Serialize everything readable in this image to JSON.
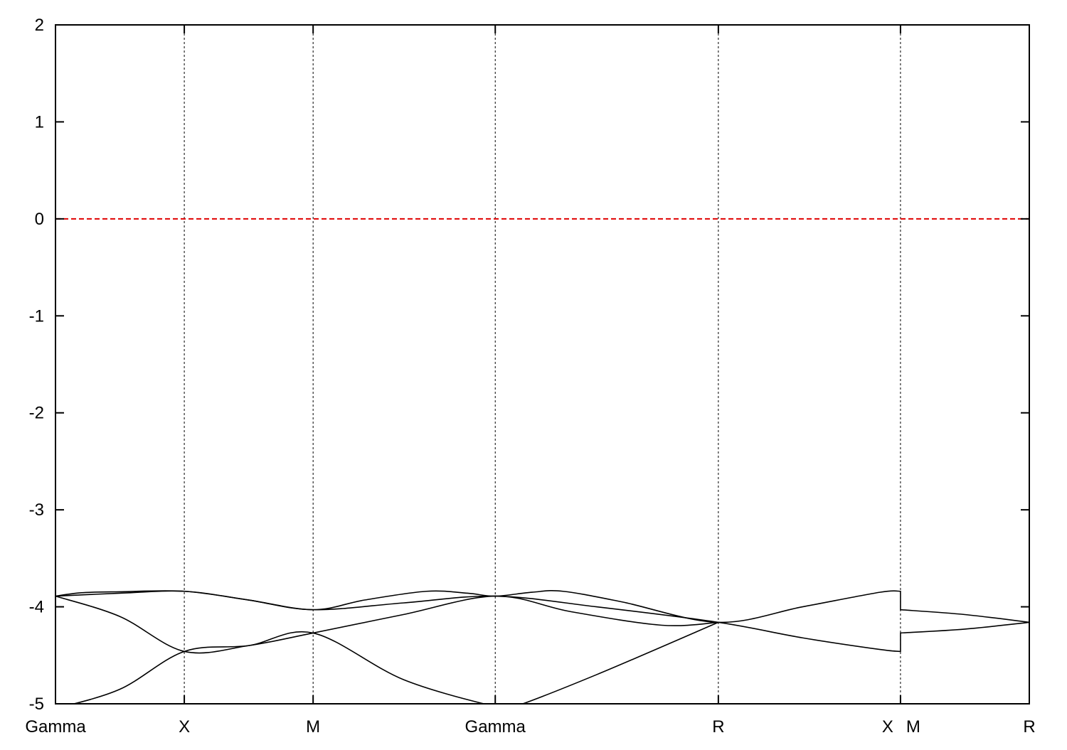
{
  "chart_data": {
    "type": "line",
    "title": "",
    "xlabel": "",
    "ylabel": "",
    "ylim": [
      -5,
      2
    ],
    "yticks": [
      "2",
      "1",
      "0",
      "-1",
      "-2",
      "-3",
      "-4",
      "-5"
    ],
    "xlim": [
      0,
      3.78
    ],
    "high_symmetry_points": [
      {
        "label": "Gamma",
        "k": 0
      },
      {
        "label": "X",
        "k": 0.5
      },
      {
        "label": "M",
        "k": 1.0
      },
      {
        "label": "Gamma",
        "k": 1.707
      },
      {
        "label": "R",
        "k": 2.573
      },
      {
        "label": "X",
        "k": 3.28
      },
      {
        "label": "M",
        "k": 3.28
      },
      {
        "label": "R",
        "k": 3.78
      }
    ],
    "fermi_level": 0,
    "fermi_color": "#e00000",
    "band_color": "#000000",
    "bands": [
      [
        [
          0,
          -3.89
        ],
        [
          0.1,
          -3.855
        ],
        [
          0.25,
          -3.845
        ],
        [
          0.5,
          -3.84
        ],
        [
          0.75,
          -3.93
        ],
        [
          1.0,
          -4.03
        ],
        [
          1.2,
          -3.93
        ],
        [
          1.44,
          -3.84
        ],
        [
          1.6,
          -3.86
        ],
        [
          1.707,
          -3.89
        ],
        [
          1.85,
          -3.85
        ],
        [
          1.97,
          -3.84
        ],
        [
          2.2,
          -3.95
        ],
        [
          2.573,
          -4.16
        ],
        [
          2.9,
          -4.0
        ],
        [
          3.2,
          -3.85
        ],
        [
          3.28,
          -3.84
        ],
        [
          3.28,
          -4.03
        ],
        [
          3.53,
          -4.08
        ],
        [
          3.78,
          -4.16
        ]
      ],
      [
        [
          0,
          -3.89
        ],
        [
          0.25,
          -3.86
        ],
        [
          0.5,
          -3.84
        ],
        [
          0.75,
          -3.93
        ],
        [
          1.0,
          -4.03
        ],
        [
          1.35,
          -3.96
        ],
        [
          1.707,
          -3.89
        ],
        [
          2.1,
          -4.0
        ],
        [
          2.573,
          -4.16
        ],
        [
          2.9,
          -4.32
        ],
        [
          3.2,
          -4.44
        ],
        [
          3.28,
          -4.46
        ],
        [
          3.28,
          -4.27
        ],
        [
          3.53,
          -4.23
        ],
        [
          3.78,
          -4.16
        ]
      ],
      [
        [
          0,
          -3.89
        ],
        [
          0.25,
          -4.1
        ],
        [
          0.5,
          -4.46
        ],
        [
          0.75,
          -4.4
        ],
        [
          1.0,
          -4.27
        ],
        [
          1.35,
          -4.08
        ],
        [
          1.707,
          -3.89
        ],
        [
          2.0,
          -4.05
        ],
        [
          2.354,
          -4.19
        ],
        [
          2.573,
          -4.16
        ]
      ],
      [
        [
          0,
          -5.05
        ],
        [
          0.25,
          -4.85
        ],
        [
          0.5,
          -4.46
        ],
        [
          0.75,
          -4.4
        ],
        [
          1.0,
          -4.27
        ],
        [
          1.35,
          -4.75
        ],
        [
          1.707,
          -5.03
        ],
        [
          1.77,
          -5.04
        ],
        [
          2.1,
          -4.7
        ],
        [
          2.573,
          -4.16
        ]
      ]
    ]
  }
}
